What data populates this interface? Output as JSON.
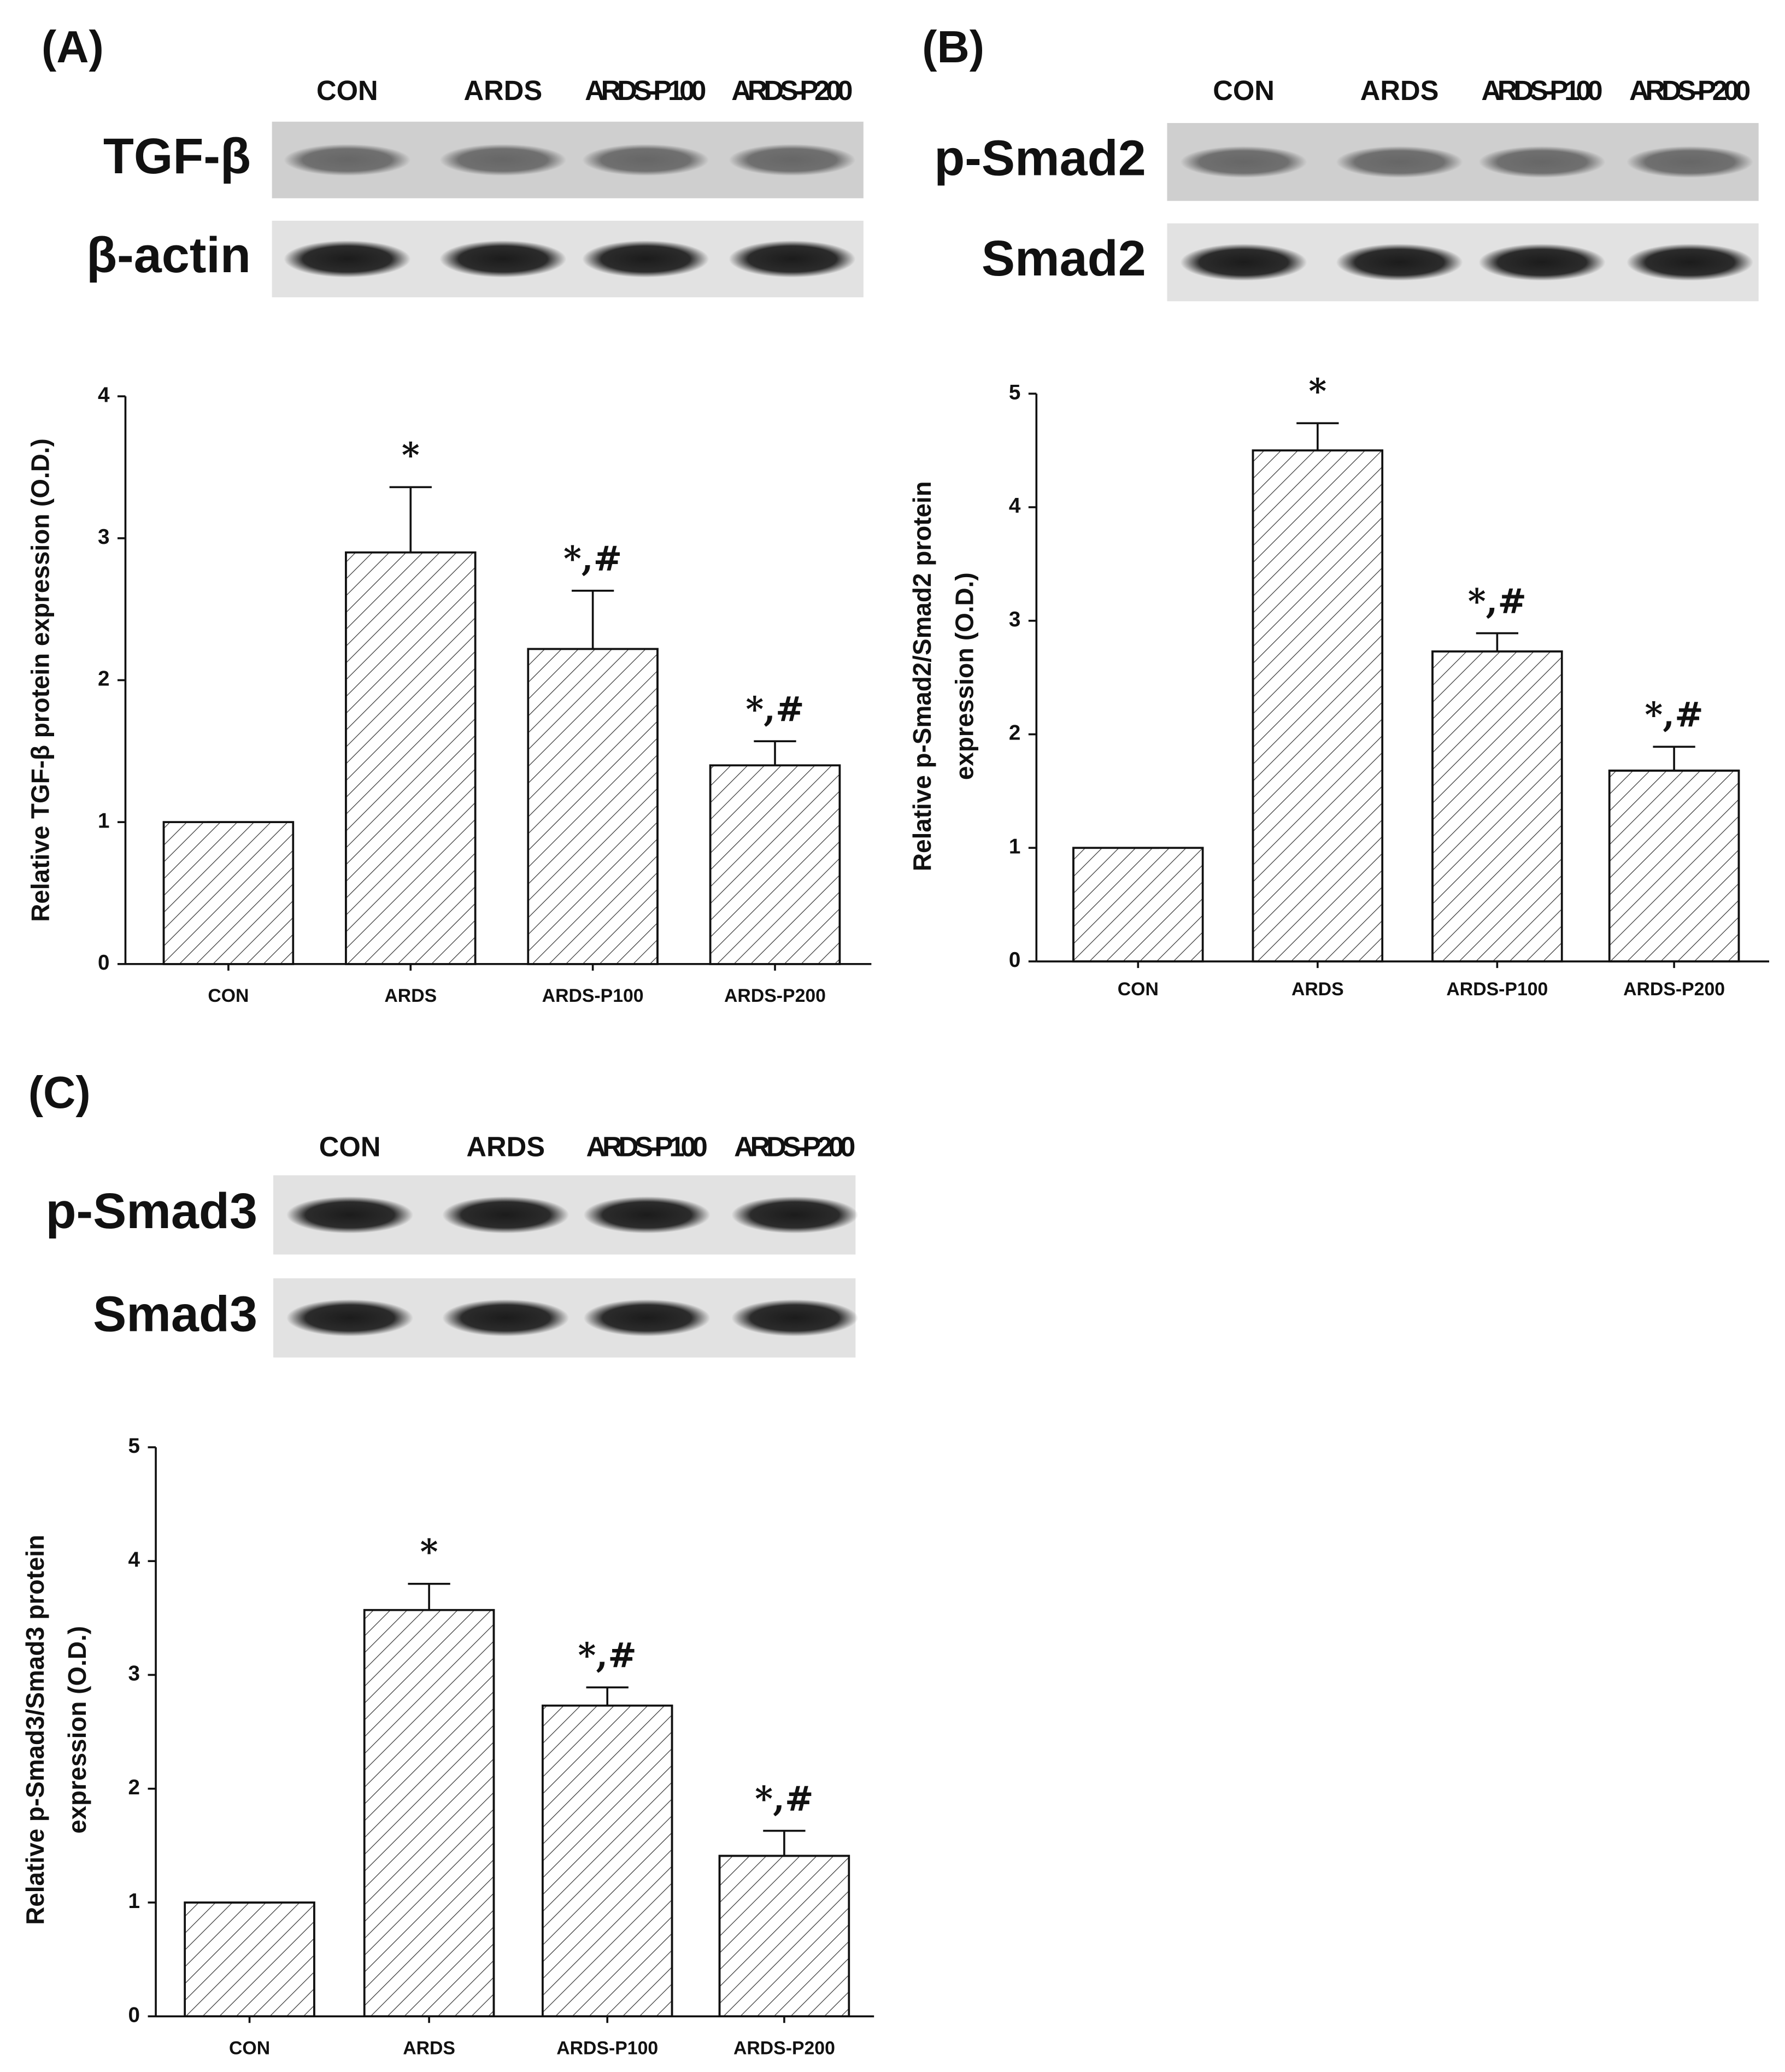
{
  "chart_data": [
    {
      "type": "bar",
      "title": "(A)",
      "blot": {
        "lanes": [
          "CON",
          "ARDS",
          "ARDS-P100",
          "ARDS-P200"
        ],
        "rows": [
          "TGF-β",
          "β-actin"
        ]
      },
      "y_label": [
        "Relative TGF-β protein expression (O.D.)"
      ],
      "categories": [
        "CON",
        "ARDS",
        "ARDS-P100",
        "ARDS-P200"
      ],
      "values": [
        1,
        2.9,
        2.22,
        1.4
      ],
      "errors": [
        0,
        0.46,
        0.41,
        0.17
      ],
      "annotations": [
        null,
        "*",
        "*,#",
        "*,#"
      ],
      "ylim": [
        0,
        4
      ],
      "yticks": [
        0,
        1,
        2,
        3,
        4
      ],
      "color": "#ffffff",
      "hatch": true
    },
    {
      "type": "bar",
      "title": "(B)",
      "blot": {
        "lanes": [
          "CON",
          "ARDS",
          "ARDS-P100",
          "ARDS-P200"
        ],
        "rows": [
          "p-Smad2",
          "Smad2"
        ]
      },
      "y_label": [
        "Relative p-Smad2/Smad2 protein",
        "expression (O.D.)"
      ],
      "categories": [
        "CON",
        "ARDS",
        "ARDS-P100",
        "ARDS-P200"
      ],
      "values": [
        1,
        4.5,
        2.73,
        1.68
      ],
      "errors": [
        0,
        0.24,
        0.16,
        0.21
      ],
      "annotations": [
        null,
        "*",
        "*,#",
        "*,#"
      ],
      "ylim": [
        0,
        5
      ],
      "yticks": [
        0,
        1,
        2,
        3,
        4,
        5
      ],
      "color": "#ffffff",
      "hatch": true
    },
    {
      "type": "bar",
      "title": "(C)",
      "blot": {
        "lanes": [
          "CON",
          "ARDS",
          "ARDS-P100",
          "ARDS-P200"
        ],
        "rows": [
          "p-Smad3",
          "Smad3"
        ]
      },
      "y_label": [
        "Relative p-Smad3/Smad3 protein",
        "expression (O.D.)"
      ],
      "categories": [
        "CON",
        "ARDS",
        "ARDS-P100",
        "ARDS-P200"
      ],
      "values": [
        1,
        3.57,
        2.73,
        1.41
      ],
      "errors": [
        0,
        0.23,
        0.16,
        0.22
      ],
      "annotations": [
        null,
        "*",
        "*,#",
        "*,#"
      ],
      "ylim": [
        0,
        5
      ],
      "yticks": [
        0,
        1,
        2,
        3,
        4,
        5
      ],
      "color": "#ffffff",
      "hatch": true
    }
  ]
}
